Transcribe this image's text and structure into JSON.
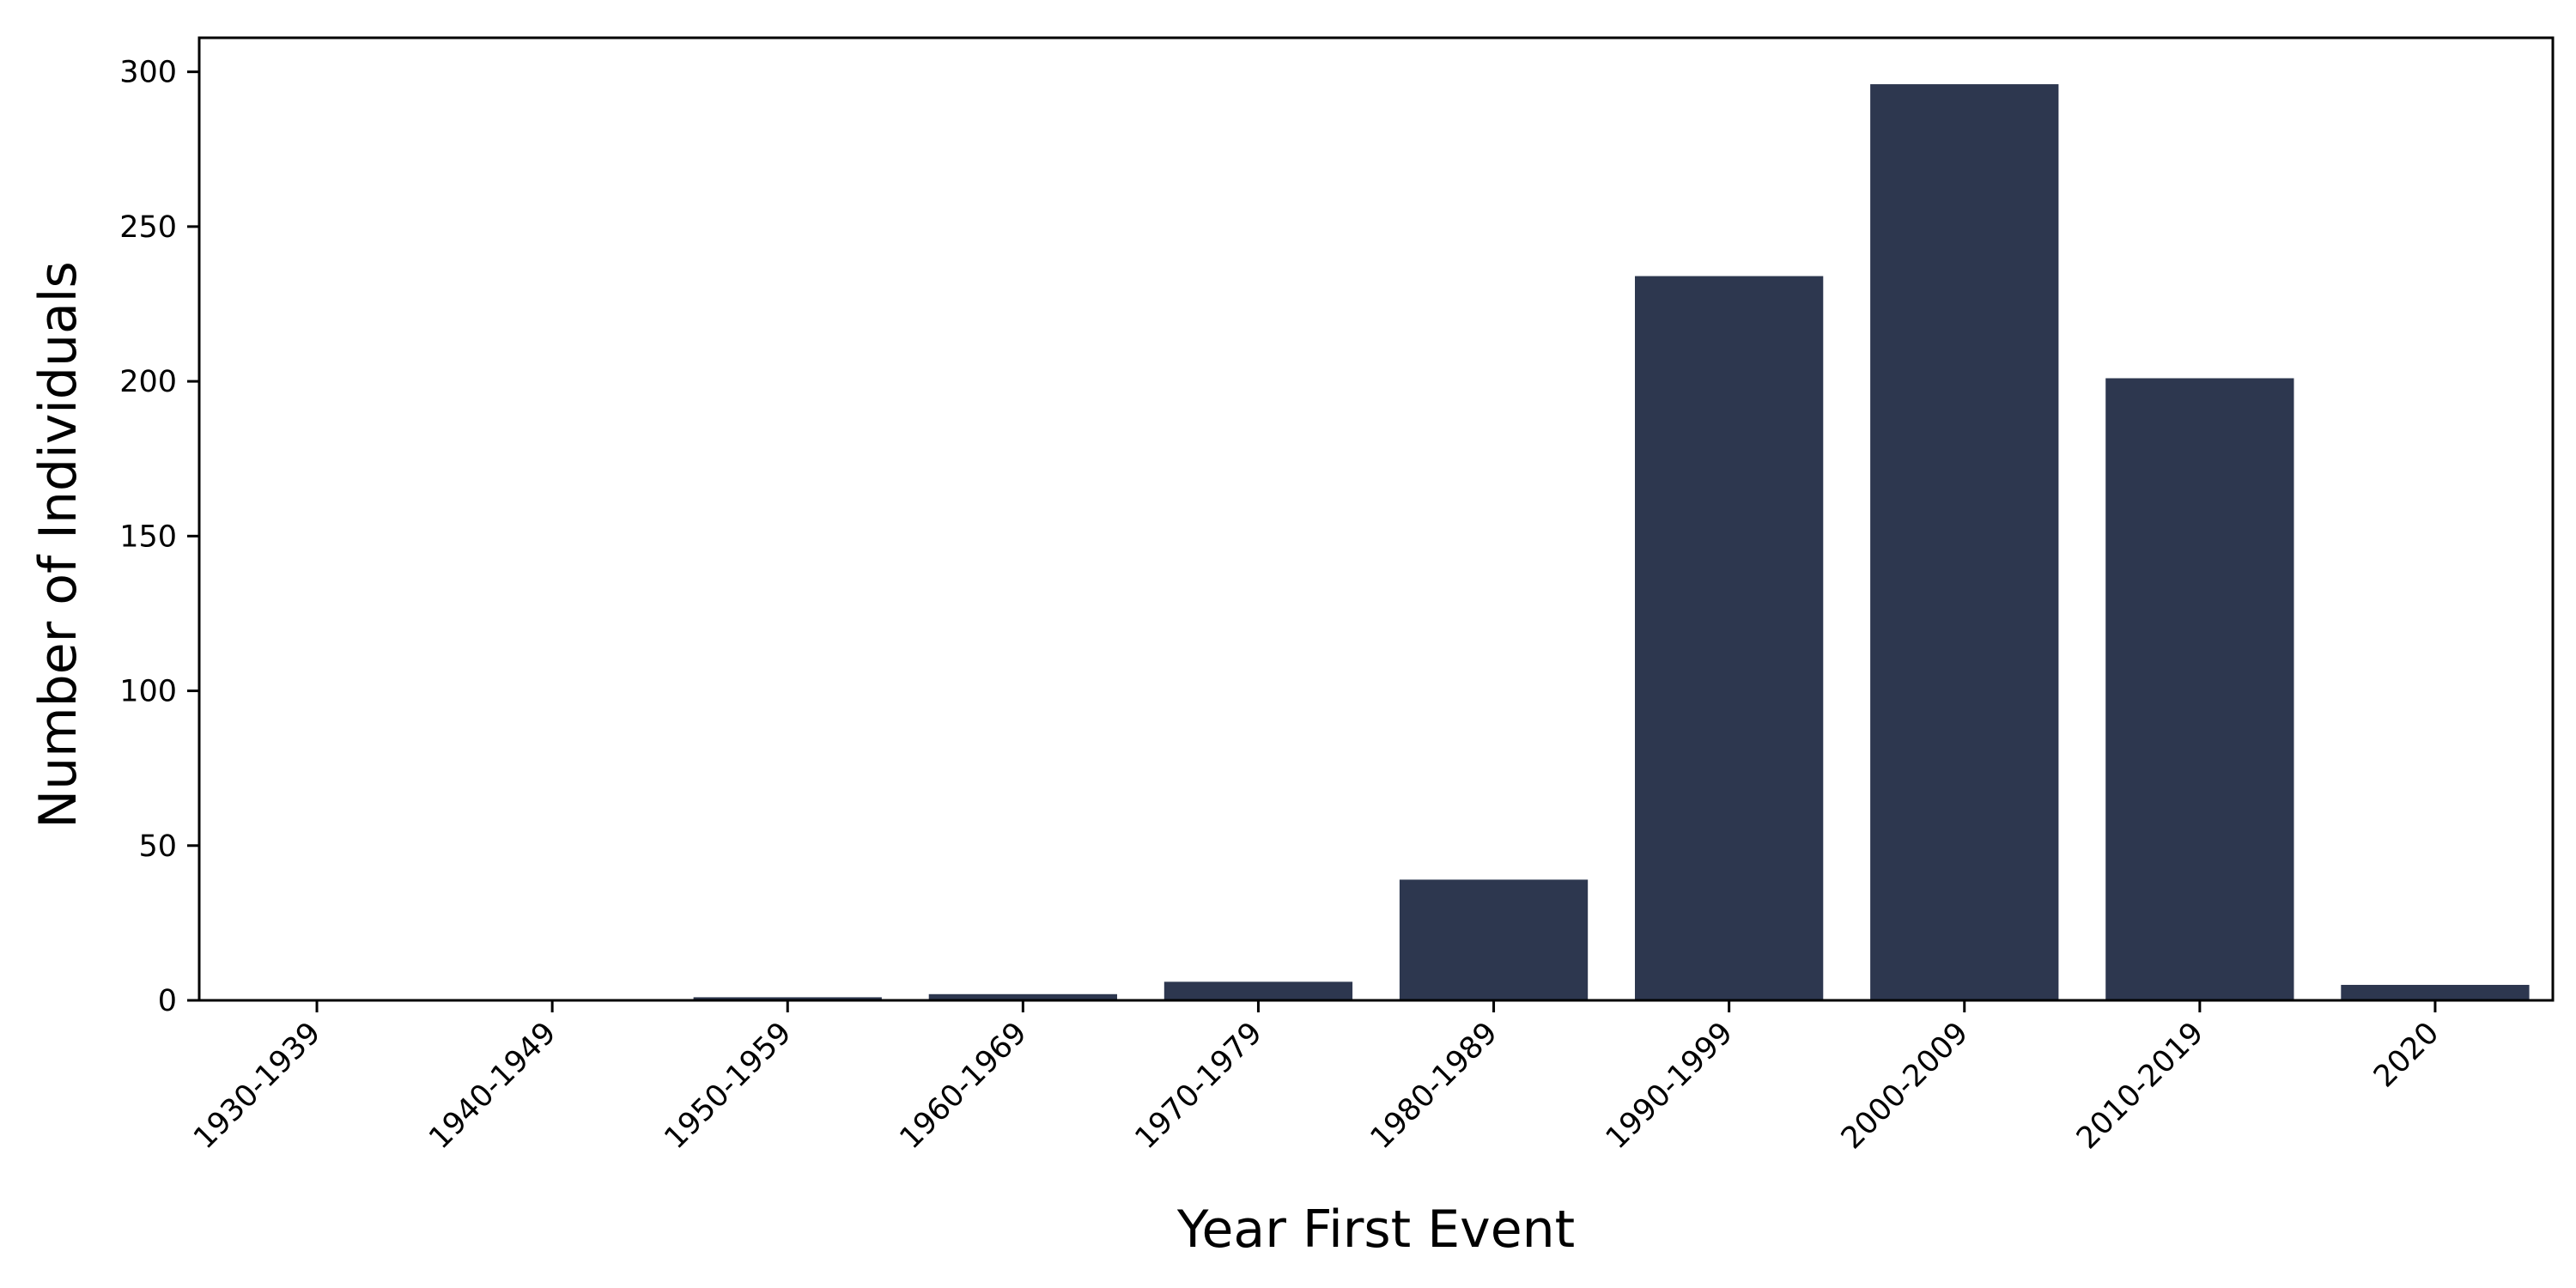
{
  "chart_data": {
    "type": "bar",
    "title": "",
    "xlabel": "Year First Event",
    "ylabel": "Number of Individuals",
    "categories": [
      "1930-1939",
      "1940-1949",
      "1950-1959",
      "1960-1969",
      "1970-1979",
      "1980-1989",
      "1990-1999",
      "2000-2009",
      "2010-2019",
      "2020"
    ],
    "values": [
      0,
      0,
      1,
      2,
      6,
      39,
      234,
      296,
      201,
      5
    ],
    "ylim": [
      0,
      311
    ],
    "yticks": [
      0,
      50,
      100,
      150,
      200,
      250,
      300
    ],
    "grid": false,
    "legend": "none",
    "bar_color": "#2d374f",
    "axis_color": "#000000"
  }
}
